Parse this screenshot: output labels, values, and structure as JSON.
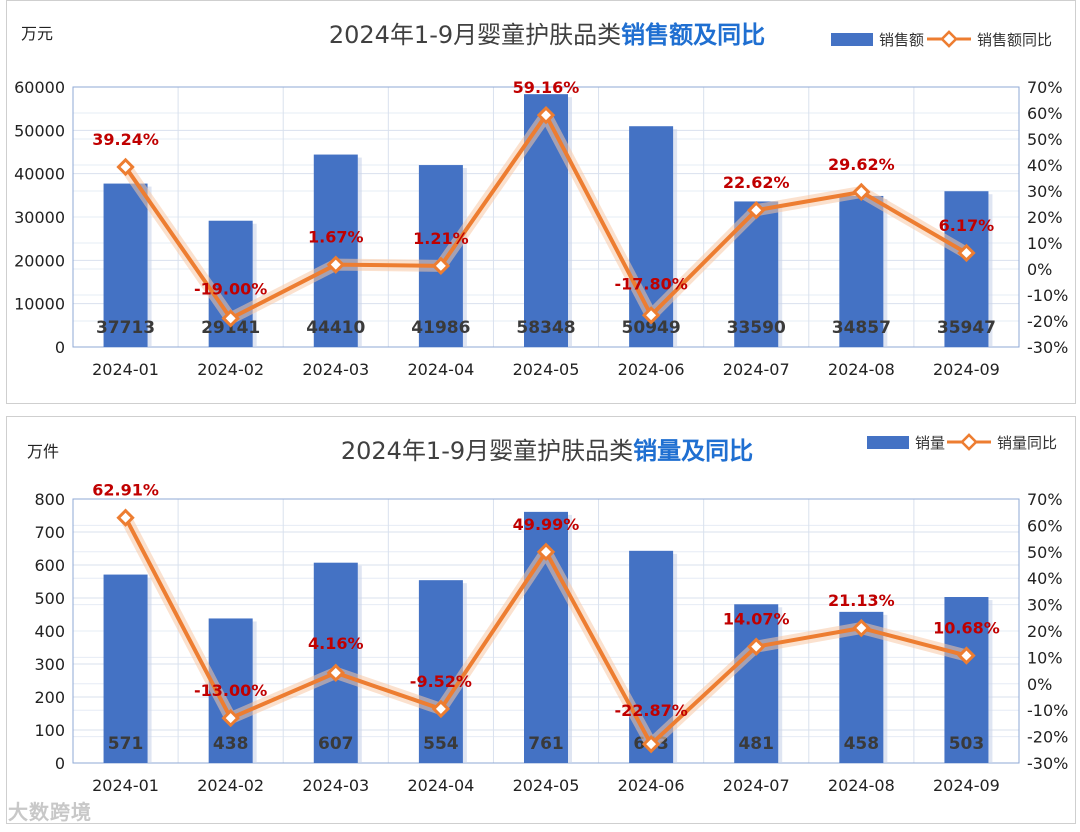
{
  "charts": [
    {
      "id": "sales",
      "unit_label": "万元",
      "title_main": "2024年1-9月婴童护肤品类",
      "title_highlight": "销售额及同比",
      "legend_bar": "销售额",
      "legend_line": "销售额同比",
      "bar_color": "#4472c4",
      "line_color": "#ed7d31",
      "label_color": "#c00000",
      "y_ticks": [
        "60000",
        "50000",
        "40000",
        "30000",
        "20000",
        "10000",
        "0"
      ],
      "y2_ticks": [
        "70%",
        "60%",
        "50%",
        "40%",
        "30%",
        "20%",
        "10%",
        "0%",
        "-10%",
        "-20%",
        "-30%"
      ]
    },
    {
      "id": "volume",
      "unit_label": "万件",
      "title_main": "2024年1-9月婴童护肤品类",
      "title_highlight": "销量及同比",
      "legend_bar": "销量",
      "legend_line": "销量同比",
      "bar_color": "#4472c4",
      "line_color": "#ed7d31",
      "label_color": "#c00000",
      "y_ticks": [
        "800",
        "700",
        "600",
        "500",
        "400",
        "300",
        "200",
        "100",
        "0"
      ],
      "y2_ticks": [
        "70%",
        "60%",
        "50%",
        "40%",
        "30%",
        "20%",
        "10%",
        "0%",
        "-10%",
        "-20%",
        "-30%"
      ]
    }
  ],
  "chart_data": [
    {
      "type": "bar",
      "title": "2024年1-9月婴童护肤品类销售额及同比",
      "ylabel": "万元",
      "categories": [
        "2024-01",
        "2024-02",
        "2024-03",
        "2024-04",
        "2024-05",
        "2024-06",
        "2024-07",
        "2024-08",
        "2024-09"
      ],
      "series": [
        {
          "name": "销售额",
          "type": "bar",
          "axis": "left",
          "values": [
            37713,
            29141,
            44410,
            41986,
            58348,
            50949,
            33590,
            34857,
            35947
          ],
          "labels": [
            "37713",
            "29141",
            "44410",
            "41986",
            "58348",
            "50949",
            "33590",
            "34857",
            "35947"
          ]
        },
        {
          "name": "销售额同比",
          "type": "line",
          "axis": "right",
          "values": [
            39.24,
            -19.0,
            1.67,
            1.21,
            59.16,
            -17.8,
            22.62,
            29.62,
            6.17
          ],
          "labels": [
            "39.24%",
            "-19.00%",
            "1.67%",
            "1.21%",
            "59.16%",
            "-17.80%",
            "22.62%",
            "29.62%",
            "6.17%"
          ]
        }
      ],
      "ylim": [
        0,
        60000
      ],
      "y2lim": [
        -30,
        70
      ],
      "grid": true,
      "legend": "top-right"
    },
    {
      "type": "bar",
      "title": "2024年1-9月婴童护肤品类销量及同比",
      "ylabel": "万件",
      "categories": [
        "2024-01",
        "2024-02",
        "2024-03",
        "2024-04",
        "2024-05",
        "2024-06",
        "2024-07",
        "2024-08",
        "2024-09"
      ],
      "series": [
        {
          "name": "销量",
          "type": "bar",
          "axis": "left",
          "values": [
            571,
            438,
            607,
            554,
            761,
            643,
            481,
            458,
            503
          ],
          "labels": [
            "571",
            "438",
            "607",
            "554",
            "761",
            "643",
            "481",
            "458",
            "503"
          ]
        },
        {
          "name": "销量同比",
          "type": "line",
          "axis": "right",
          "values": [
            62.91,
            -13.0,
            4.16,
            -9.52,
            49.99,
            -22.87,
            14.07,
            21.13,
            10.68
          ],
          "labels": [
            "62.91%",
            "-13.00%",
            "4.16%",
            "-9.52%",
            "49.99%",
            "-22.87%",
            "14.07%",
            "21.13%",
            "10.68%"
          ]
        }
      ],
      "ylim": [
        0,
        800
      ],
      "y2lim": [
        -30,
        70
      ],
      "grid": true,
      "legend": "top-right"
    }
  ],
  "watermark": "大数跨境"
}
